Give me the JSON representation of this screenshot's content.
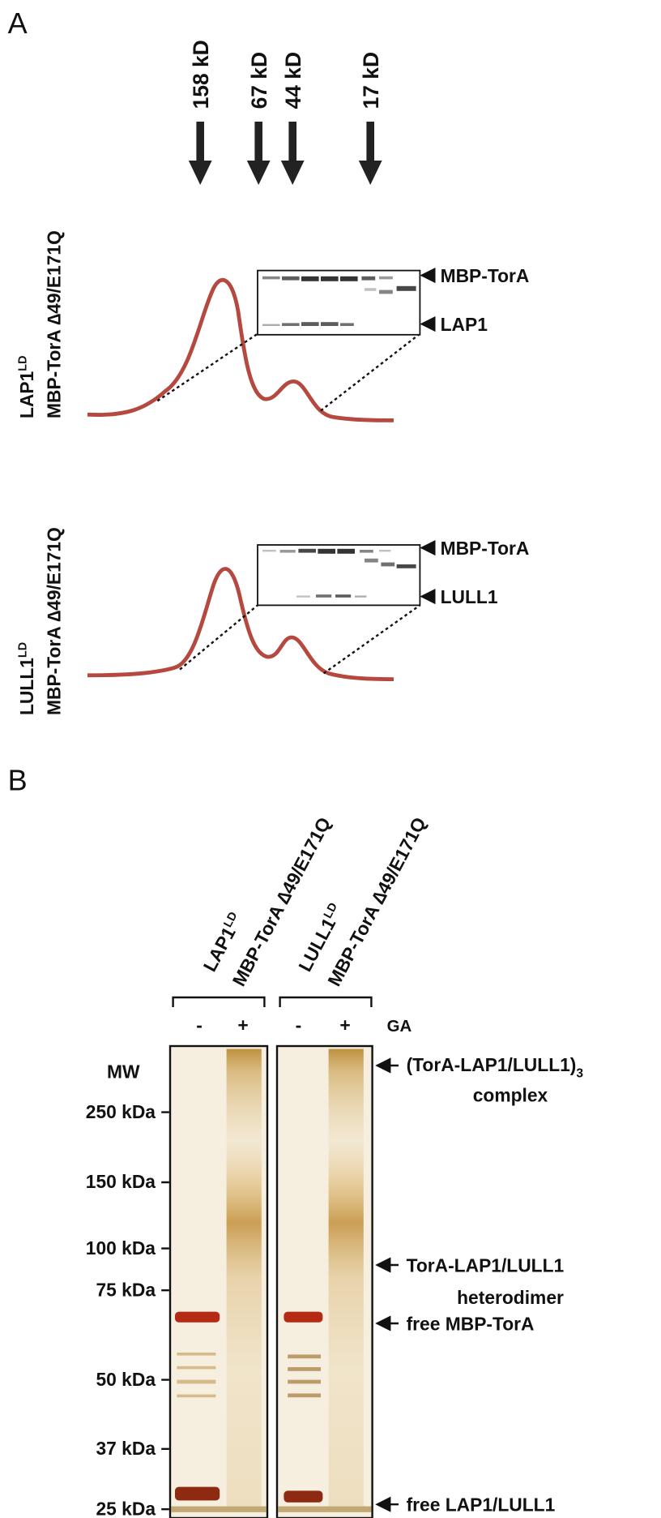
{
  "panel_a": {
    "label": "A",
    "size_markers": [
      "158 kD",
      "67 kD",
      "44 kD",
      "17 kD"
    ],
    "traces": [
      {
        "construct": {
          "name": "LAP1",
          "sup": "LD",
          "line2": "MBP-TorA ∆49/E171Q"
        },
        "gel_labels": [
          "MBP-TorA",
          "LAP1"
        ]
      },
      {
        "construct": {
          "name": "LULL1",
          "sup": "LD",
          "line2": "MBP-TorA ∆49/E171Q"
        },
        "gel_labels": [
          "MBP-TorA",
          "LULL1"
        ]
      }
    ]
  },
  "panel_b": {
    "label": "B",
    "lane_groups": [
      {
        "name": "LAP1",
        "sup": "LD",
        "line2": "MBP-TorA ∆49/E171Q"
      },
      {
        "name": "LULL1",
        "sup": "LD",
        "line2": "MBP-TorA ∆49/E171Q"
      }
    ],
    "lanes": [
      "-",
      "+",
      "-",
      "+"
    ],
    "treatment": "GA",
    "mw_title": "MW",
    "mw_markers": [
      "250 kDa",
      "150 kDa",
      "100 kDa",
      "75 kDa",
      "50 kDa",
      "37 kDa",
      "25 kDa"
    ],
    "annotations": [
      {
        "line1": "(TorA-LAP1/LULL1)",
        "sub": "3",
        "line2": "complex"
      },
      {
        "line1": "TorA-LAP1/LULL1",
        "line2": "heterodimer"
      },
      {
        "line1": "free MBP-TorA"
      },
      {
        "line1": "free LAP1/LULL1"
      }
    ]
  }
}
